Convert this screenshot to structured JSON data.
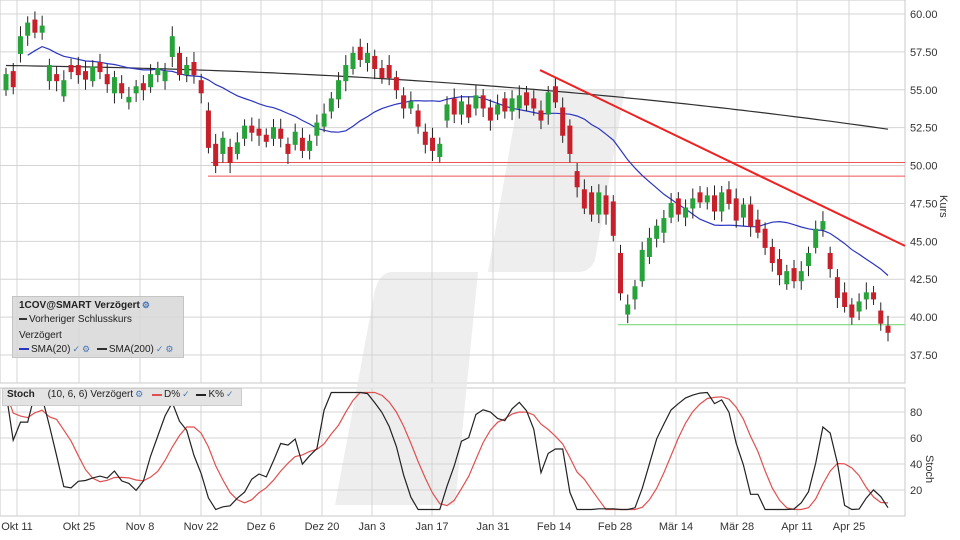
{
  "chart_data": [
    {
      "type": "candlestick",
      "title": "1COV@SMART Verzögert",
      "ylabel": "Kurs",
      "ylim": [
        36.0,
        61.0
      ],
      "yticks": [
        "60.00",
        "57.50",
        "55.00",
        "52.50",
        "50.00",
        "47.50",
        "45.00",
        "42.50",
        "40.00",
        "37.50"
      ],
      "x_labels": [
        "Okt 11",
        "Okt 25",
        "Nov 8",
        "Nov 22",
        "Dez 6",
        "Dez 20",
        "Jan 3",
        "Jan 17",
        "Jan 31",
        "Feb 14",
        "Feb 28",
        "Mär 14",
        "Mär 28",
        "Apr 11",
        "Apr 25"
      ],
      "legend": {
        "prev_close": "Vorheriger Schlusskurs",
        "delayed": "Verzögert",
        "sma20": "SMA(20)",
        "sma200": "SMA(200)"
      },
      "closes": [
        56.0,
        55.2,
        58.5,
        59.4,
        58.8,
        59.2,
        56.6,
        55.6,
        55.6,
        56.2,
        56.0,
        55.7,
        56.5,
        56.2,
        55.4,
        55.8,
        54.8,
        54.5,
        55.2,
        55.0,
        56.0,
        56.4,
        56.2,
        58.5,
        56.0,
        56.6,
        56.0,
        54.8,
        51.2,
        50.0,
        51.8,
        50.2,
        51.5,
        52.6,
        52.2,
        52.0,
        51.6,
        52.5,
        51.8,
        50.8,
        52.2,
        51.0,
        51.6,
        52.8,
        53.4,
        54.4,
        55.6,
        56.6,
        57.4,
        57.0,
        57.4,
        56.4,
        55.8,
        55.8,
        55.0,
        53.8,
        54.2,
        52.6,
        51.4,
        51.0,
        51.4,
        54.0,
        53.4,
        54.2,
        53.2,
        54.6,
        53.8,
        53.0,
        54.0,
        53.6,
        54.4,
        54.6,
        54.0,
        53.8,
        53.0,
        54.8,
        54.2,
        52.0,
        50.8,
        48.6,
        47.2,
        46.8,
        48.2,
        46.8,
        45.4,
        41.6,
        40.8,
        42.0,
        44.4,
        45.2,
        46.0,
        46.5,
        47.5,
        46.8,
        47.2,
        47.8,
        47.6,
        48.0,
        47.0,
        48.2,
        47.5,
        46.4,
        47.4,
        46.0,
        45.6,
        44.6,
        43.6,
        42.8,
        43.0,
        42.4,
        43.0,
        44.2,
        45.8,
        46.3,
        43.2,
        41.3,
        40.7,
        40.0,
        41.0,
        41.6,
        41.2,
        39.6,
        39.0
      ],
      "opens": [
        55.0,
        56.2,
        57.4,
        58.6,
        59.6,
        58.8,
        55.6,
        56.0,
        54.6,
        56.6,
        56.6,
        56.2,
        55.6,
        56.8,
        56.0,
        54.8,
        55.4,
        54.2,
        54.8,
        55.4,
        55.2,
        56.0,
        55.6,
        57.2,
        57.4,
        56.0,
        56.8,
        55.6,
        53.6,
        51.4,
        50.8,
        51.2,
        50.8,
        51.8,
        52.6,
        52.4,
        52.0,
        51.8,
        52.4,
        51.4,
        51.4,
        51.8,
        51.0,
        52.0,
        52.6,
        53.6,
        54.4,
        55.6,
        56.4,
        57.8,
        56.8,
        57.2,
        56.4,
        56.6,
        55.8,
        54.6,
        53.8,
        53.6,
        52.2,
        51.8,
        50.6,
        53.0,
        54.4,
        53.4,
        54.0,
        53.8,
        54.6,
        53.8,
        53.4,
        54.4,
        53.6,
        53.8,
        54.8,
        54.4,
        53.6,
        53.4,
        55.2,
        53.8,
        52.6,
        49.6,
        48.4,
        48.2,
        46.8,
        48.0,
        47.6,
        44.2,
        40.2,
        41.2,
        42.4,
        44.0,
        45.2,
        45.6,
        46.6,
        47.8,
        46.6,
        47.2,
        48.2,
        47.6,
        48.0,
        47.0,
        48.4,
        47.8,
        46.6,
        47.4,
        46.4,
        45.8,
        44.6,
        43.8,
        42.2,
        43.2,
        42.4,
        43.4,
        44.6,
        45.8,
        44.2,
        42.6,
        41.6,
        40.8,
        40.4,
        41.2,
        41.6,
        40.4,
        39.4
      ]
    },
    {
      "type": "line",
      "title": "Stoch",
      "subtitle": "(10, 6, 6) Verzögert",
      "ylabel": "Stoch",
      "ylim": [
        0,
        100
      ],
      "yticks": [
        80,
        60,
        40,
        20
      ],
      "series": [
        {
          "name": "D%",
          "color": "#e05050"
        },
        {
          "name": "K%",
          "color": "#222222"
        }
      ]
    }
  ],
  "colors": {
    "up": "#27a33a",
    "down": "#c8202a",
    "sma20": "#2c35c0",
    "sma200": "#303030",
    "trendline": "#ee2222",
    "support": "#7fd87f",
    "resistance": "#ee5555",
    "grid": "#d4d4d4"
  }
}
